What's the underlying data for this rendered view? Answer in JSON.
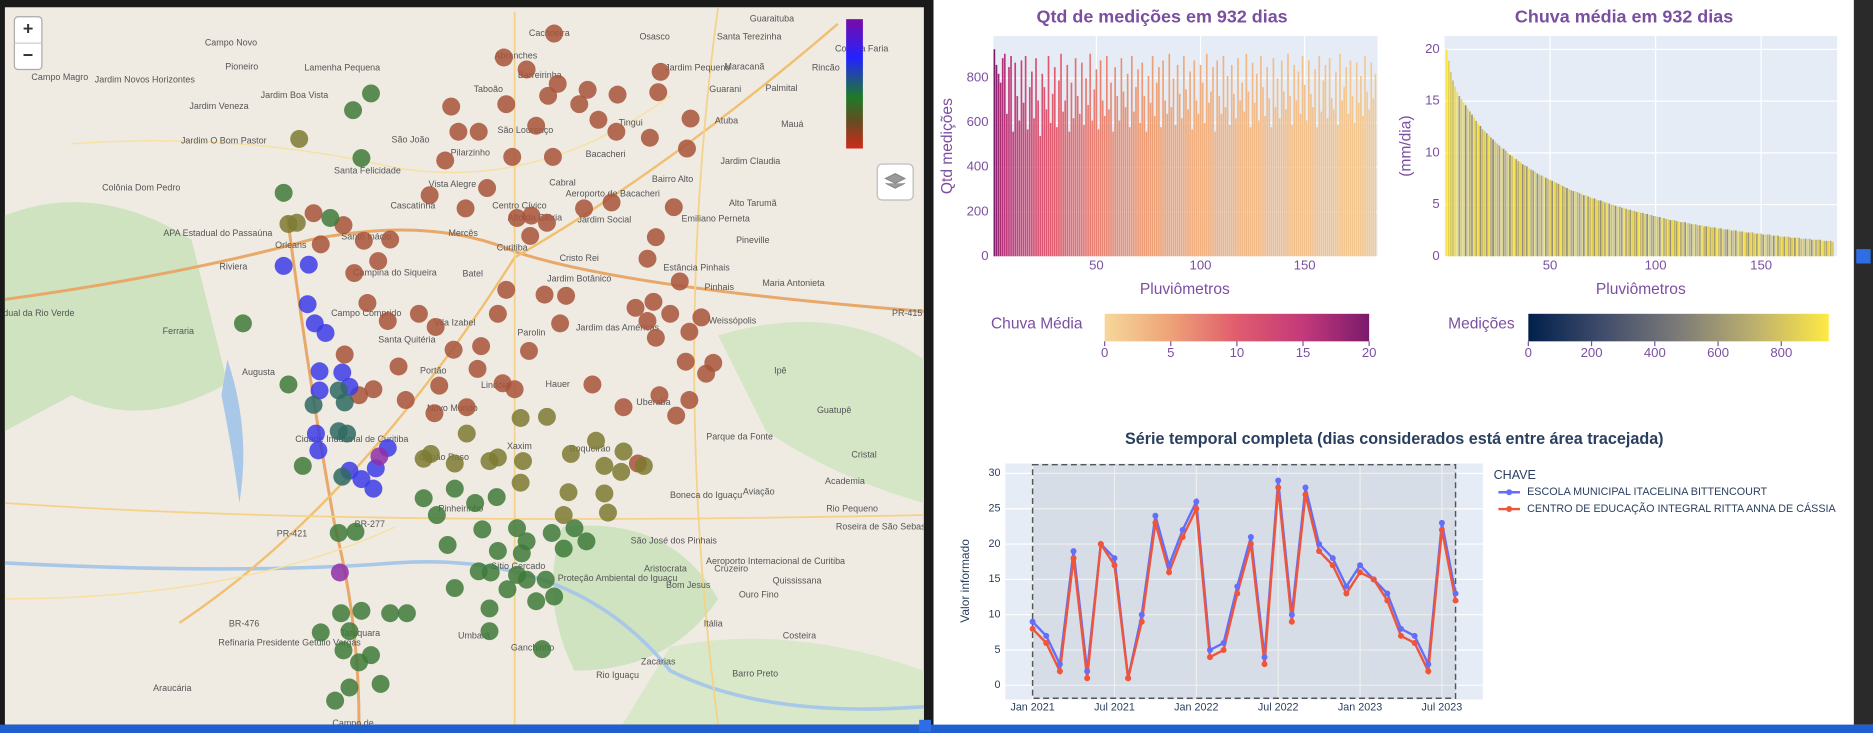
{
  "map": {
    "zoom_in": "+",
    "zoom_out": "−",
    "labels": [
      "Guaraituba",
      "Cachoeira",
      "Osasco",
      "Santa Terezinha",
      "Campo Novo",
      "Colônia Faria",
      "Abranches",
      "Pioneiro",
      "Lamenha Pequena",
      "Jardim Pequeno",
      "Maracanã",
      "Rincão",
      "Barreirinha",
      "Campo Magro",
      "Jardim Novos Horizontes",
      "Taboão",
      "Guarani",
      "Palmital",
      "Jardim Boa Vista",
      "Jardim Veneza",
      "Atuba",
      "Mauá",
      "Tingui",
      "São Lourenço",
      "São João",
      "Jardim O Bom Pastor",
      "Pilarzinho",
      "Bacacheri",
      "Jardim Claudia",
      "Santa Felicidade",
      "Bairro Alto",
      "Vista Alegre",
      "Cabral",
      "Colônia Dom Pedro",
      "Aeroporto de Bacacheri",
      "Alto Tarumã",
      "Cascatinha",
      "Centro Cívico",
      "Alto da Glória",
      "Jardim Social",
      "Emiliano Perneta",
      "APA Estadual do Passaúna",
      "Mercês",
      "Santo Inácio",
      "Pineville",
      "Orleans",
      "Curitiba",
      "Cristo Rei",
      "Riviera",
      "Estância Pinhais",
      "Campina do Siqueira",
      "Batel",
      "Jardim Botânico",
      "Maria Antonieta",
      "Pinhais",
      "Estadual da Rio Verde",
      "Campo Comprido",
      "PR-415",
      "Weissópolis",
      "Vila Izabel",
      "Jardim das Américas",
      "Ferraria",
      "Parolin",
      "Santa Quitéria",
      "Portão",
      "Ipê",
      "Augusta",
      "Hauer",
      "Lindóia",
      "Uberaba",
      "Novo Mundo",
      "Guatupê",
      "Parque da Fonte",
      "Cidade Industrial de Curitiba",
      "Xaxim",
      "Boqueirão",
      "Cristal",
      "Capão Raso",
      "Academia",
      "Aviação",
      "Boneca do Iguaçu",
      "Pinheirinho",
      "Rio Pequeno",
      "BR-277",
      "Roseira de São Sebastião",
      "PR-421",
      "São José dos Pinhais",
      "Aeroporto Internacional de Curitiba",
      "Sítio Cercado",
      "Aristocrata",
      "Cruzeiro",
      "Proteção Ambiental do Iguaçu",
      "Quississana",
      "Bom Jesus",
      "Ouro Fino",
      "BR-476",
      "Itália",
      "Tatuquara",
      "Costeira",
      "Umbará",
      "Refinaria Presidente Getúlio Vargas",
      "Ganchinho",
      "Zacarias",
      "Barro Preto",
      "Rio Iguaçu",
      "Araucária",
      "Campo de"
    ]
  },
  "chart_data": [
    {
      "type": "bar",
      "title": "Qtd de medições em 932 dias",
      "x_label": "Pluviômetros",
      "y_label": "Qtd medições",
      "grid": true,
      "x": [
        1,
        2,
        3,
        4,
        5,
        6,
        7,
        8,
        9,
        10,
        11,
        12,
        13,
        14,
        15,
        16,
        17,
        18,
        19,
        20,
        21,
        22,
        23,
        24,
        25,
        26,
        27,
        28,
        29,
        30,
        31,
        32,
        33,
        34,
        35,
        36,
        37,
        38,
        39,
        40,
        41,
        42,
        43,
        44,
        45,
        46,
        47,
        48,
        49,
        50,
        51,
        52,
        53,
        54,
        55,
        56,
        57,
        58,
        59,
        60,
        61,
        62,
        63,
        64,
        65,
        66,
        67,
        68,
        69,
        70,
        71,
        72,
        73,
        74,
        75,
        76,
        77,
        78,
        79,
        80,
        81,
        82,
        83,
        84,
        85,
        86,
        87,
        88,
        89,
        90,
        91,
        92,
        93,
        94,
        95,
        96,
        97,
        98,
        99,
        100,
        101,
        102,
        103,
        104,
        105,
        106,
        107,
        108,
        109,
        110,
        111,
        112,
        113,
        114,
        115,
        116,
        117,
        118,
        119,
        120,
        121,
        122,
        123,
        124,
        125,
        126,
        127,
        128,
        129,
        130,
        131,
        132,
        133,
        134,
        135,
        136,
        137,
        138,
        139,
        140,
        141,
        142,
        143,
        144,
        145,
        146,
        147,
        148,
        149,
        150,
        151,
        152,
        153,
        154,
        155,
        156,
        157,
        158,
        159,
        160,
        161,
        162,
        163,
        164,
        165,
        166,
        167,
        168,
        169,
        170,
        171,
        172,
        173,
        174,
        175,
        176,
        177,
        178,
        179,
        180,
        181,
        182,
        183,
        184
      ],
      "values": [
        930,
        860,
        820,
        780,
        890,
        910,
        640,
        850,
        900,
        560,
        870,
        720,
        610,
        880,
        690,
        900,
        570,
        760,
        830,
        620,
        890,
        700,
        540,
        820,
        760,
        660,
        900,
        600,
        730,
        850,
        580,
        790,
        910,
        650,
        700,
        860,
        560,
        780,
        620,
        890,
        720,
        640,
        870,
        590,
        800,
        680,
        910,
        610,
        750,
        840,
        570,
        880,
        700,
        630,
        900,
        660,
        780,
        560,
        850,
        720,
        610,
        890,
        740,
        670,
        820,
        580,
        900,
        650,
        760,
        840,
        600,
        870,
        720,
        560,
        810,
        690,
        900,
        630,
        780,
        850,
        580,
        880,
        700,
        640,
        910,
        670,
        800,
        590,
        860,
        730,
        620,
        900,
        750,
        660,
        830,
        570,
        880,
        700,
        640,
        860,
        780,
        600,
        910,
        690,
        740,
        850,
        560,
        880,
        720,
        640,
        900,
        670,
        810,
        590,
        860,
        730,
        620,
        890,
        700,
        780,
        650,
        910,
        740,
        580,
        870,
        690,
        820,
        610,
        900,
        760,
        630,
        850,
        710,
        580,
        890,
        670,
        800,
        620,
        880,
        740,
        660,
        910,
        720,
        590,
        860,
        700,
        830,
        640,
        900,
        770,
        610,
        880,
        730,
        670,
        840,
        580,
        900,
        650,
        790,
        860,
        620,
        890,
        710,
        660,
        830,
        590,
        910,
        700,
        760,
        850,
        640,
        880,
        720,
        600,
        870,
        690,
        810,
        630,
        900,
        740,
        660,
        870,
        710,
        820
      ],
      "xlim": [
        0.5,
        185
      ],
      "xticks": [
        50,
        100,
        150
      ],
      "ylim": [
        0,
        990
      ],
      "yticks": [
        0,
        200,
        400,
        600,
        800
      ],
      "colorbar": {
        "title": "Chuva Média",
        "colors": [
          "#f6d89a",
          "#eea277",
          "#e05c6e",
          "#c3397a",
          "#7a1b6c"
        ],
        "range": [
          0,
          20
        ],
        "ticks": [
          0,
          5,
          10,
          15,
          20
        ]
      }
    },
    {
      "type": "bar",
      "title": "Chuva média em 932 dias",
      "x_label": "Pluviômetros",
      "y_label": "(mm/dia)",
      "grid": true,
      "x": [
        1,
        2,
        3,
        4,
        5,
        6,
        7,
        8,
        9,
        10,
        11,
        12,
        13,
        14,
        15,
        16,
        17,
        18,
        19,
        20,
        21,
        22,
        23,
        24,
        25,
        26,
        27,
        28,
        29,
        30,
        31,
        32,
        33,
        34,
        35,
        36,
        37,
        38,
        39,
        40,
        41,
        42,
        43,
        44,
        45,
        46,
        47,
        48,
        49,
        50,
        51,
        52,
        53,
        54,
        55,
        56,
        57,
        58,
        59,
        60,
        61,
        62,
        63,
        64,
        65,
        66,
        67,
        68,
        69,
        70,
        71,
        72,
        73,
        74,
        75,
        76,
        77,
        78,
        79,
        80,
        81,
        82,
        83,
        84,
        85,
        86,
        87,
        88,
        89,
        90,
        91,
        92,
        93,
        94,
        95,
        96,
        97,
        98,
        99,
        100,
        101,
        102,
        103,
        104,
        105,
        106,
        107,
        108,
        109,
        110,
        111,
        112,
        113,
        114,
        115,
        116,
        117,
        118,
        119,
        120,
        121,
        122,
        123,
        124,
        125,
        126,
        127,
        128,
        129,
        130,
        131,
        132,
        133,
        134,
        135,
        136,
        137,
        138,
        139,
        140,
        141,
        142,
        143,
        144,
        145,
        146,
        147,
        148,
        149,
        150,
        151,
        152,
        153,
        154,
        155,
        156,
        157,
        158,
        159,
        160,
        161,
        162,
        163,
        164,
        165,
        166,
        167,
        168,
        169,
        170,
        171,
        172,
        173,
        174,
        175,
        176,
        177,
        178,
        179,
        180,
        181,
        182,
        183,
        184
      ],
      "values": [
        20.0,
        18.9,
        17.8,
        17.0,
        16.4,
        15.9,
        15.5,
        15.2,
        14.9,
        14.6,
        14.3,
        14.0,
        13.7,
        13.4,
        13.1,
        12.8,
        12.6,
        12.3,
        12.1,
        11.9,
        11.7,
        11.5,
        11.3,
        11.1,
        10.9,
        10.7,
        10.5,
        10.4,
        10.2,
        10.0,
        9.8,
        9.7,
        9.5,
        9.4,
        9.2,
        9.1,
        8.9,
        8.8,
        8.7,
        8.5,
        8.4,
        8.3,
        8.2,
        8.0,
        7.9,
        7.8,
        7.7,
        7.6,
        7.5,
        7.4,
        7.3,
        7.2,
        7.1,
        7.0,
        6.9,
        6.8,
        6.7,
        6.6,
        6.5,
        6.4,
        6.3,
        6.3,
        6.2,
        6.1,
        6.0,
        5.9,
        5.9,
        5.8,
        5.7,
        5.6,
        5.6,
        5.5,
        5.4,
        5.4,
        5.3,
        5.2,
        5.2,
        5.1,
        5.0,
        5.0,
        4.9,
        4.8,
        4.8,
        4.7,
        4.7,
        4.6,
        4.5,
        4.5,
        4.4,
        4.4,
        4.3,
        4.3,
        4.2,
        4.2,
        4.1,
        4.1,
        4.0,
        4.0,
        3.9,
        3.9,
        3.8,
        3.8,
        3.7,
        3.7,
        3.6,
        3.6,
        3.5,
        3.5,
        3.5,
        3.4,
        3.4,
        3.3,
        3.3,
        3.3,
        3.2,
        3.2,
        3.1,
        3.1,
        3.1,
        3.0,
        3.0,
        3.0,
        2.9,
        2.9,
        2.9,
        2.8,
        2.8,
        2.8,
        2.7,
        2.7,
        2.7,
        2.6,
        2.6,
        2.6,
        2.6,
        2.5,
        2.5,
        2.5,
        2.4,
        2.4,
        2.4,
        2.4,
        2.3,
        2.3,
        2.3,
        2.3,
        2.2,
        2.2,
        2.2,
        2.2,
        2.1,
        2.1,
        2.1,
        2.1,
        2.0,
        2.0,
        2.0,
        2.0,
        1.9,
        1.9,
        1.9,
        1.9,
        1.9,
        1.8,
        1.8,
        1.8,
        1.8,
        1.8,
        1.7,
        1.7,
        1.7,
        1.7,
        1.7,
        1.6,
        1.6,
        1.6,
        1.6,
        1.6,
        1.5,
        1.5,
        1.5,
        1.5,
        1.5,
        1.4
      ],
      "xlim": [
        0,
        186
      ],
      "xticks": [
        50,
        100,
        150
      ],
      "ylim": [
        0,
        21.3
      ],
      "yticks": [
        0,
        5,
        10,
        15,
        20
      ],
      "colorbar": {
        "title": "Medições",
        "colors": [
          "#00204c",
          "#414d6b",
          "#7c7b78",
          "#bcaf6f",
          "#ffe945"
        ],
        "range": [
          0,
          950
        ],
        "ticks": [
          0,
          200,
          400,
          600,
          800
        ]
      }
    },
    {
      "type": "line",
      "title": "Série temporal completa (dias considerados está entre área tracejada)",
      "y_label": "Valor informado",
      "legend_title": "CHAVE",
      "grid": true,
      "x": [
        "2021-01",
        "2021-02",
        "2021-03",
        "2021-04",
        "2021-05",
        "2021-06",
        "2021-07",
        "2021-08",
        "2021-09",
        "2021-10",
        "2021-11",
        "2021-12",
        "2022-01",
        "2022-02",
        "2022-03",
        "2022-04",
        "2022-05",
        "2022-06",
        "2022-07",
        "2022-08",
        "2022-09",
        "2022-10",
        "2022-11",
        "2022-12",
        "2023-01",
        "2023-02",
        "2023-03",
        "2023-04",
        "2023-05",
        "2023-06",
        "2023-07",
        "2023-08"
      ],
      "xlim": [
        "2020-11",
        "2023-10"
      ],
      "xticks": [
        {
          "value": "2021-01",
          "label": "Jan 2021"
        },
        {
          "value": "2021-07",
          "label": "Jul 2021"
        },
        {
          "value": "2022-01",
          "label": "Jan 2022"
        },
        {
          "value": "2022-07",
          "label": "Jul 2022"
        },
        {
          "value": "2023-01",
          "label": "Jan 2023"
        },
        {
          "value": "2023-07",
          "label": "Jul 2023"
        }
      ],
      "ylim": [
        -2,
        31.4
      ],
      "yticks": [
        0,
        5,
        10,
        15,
        20,
        25,
        30
      ],
      "highlight": [
        "2021-01",
        "2023-08"
      ],
      "series": [
        {
          "name": "ESCOLA MUNICIPAL ITACELINA BITTENCOURT",
          "color": "#636efa",
          "values": [
            9,
            7,
            3,
            19,
            2,
            20,
            18,
            1,
            10,
            24,
            17,
            22,
            26,
            5,
            6,
            14,
            21,
            4,
            29,
            10,
            28,
            20,
            18,
            14,
            17,
            15,
            13,
            8,
            7,
            3,
            23,
            13
          ]
        },
        {
          "name": "CENTRO DE EDUCAÇÃO INTEGRAL RITTA ANNA DE CÁSSIA",
          "color": "#ef553b",
          "values": [
            8,
            6,
            2,
            18,
            1,
            20,
            17,
            1,
            9,
            23,
            16,
            21,
            25,
            4,
            5,
            13,
            20,
            3,
            28,
            9,
            27,
            19,
            17,
            13,
            16,
            15,
            12,
            7,
            6,
            2,
            22,
            12
          ]
        }
      ]
    }
  ]
}
